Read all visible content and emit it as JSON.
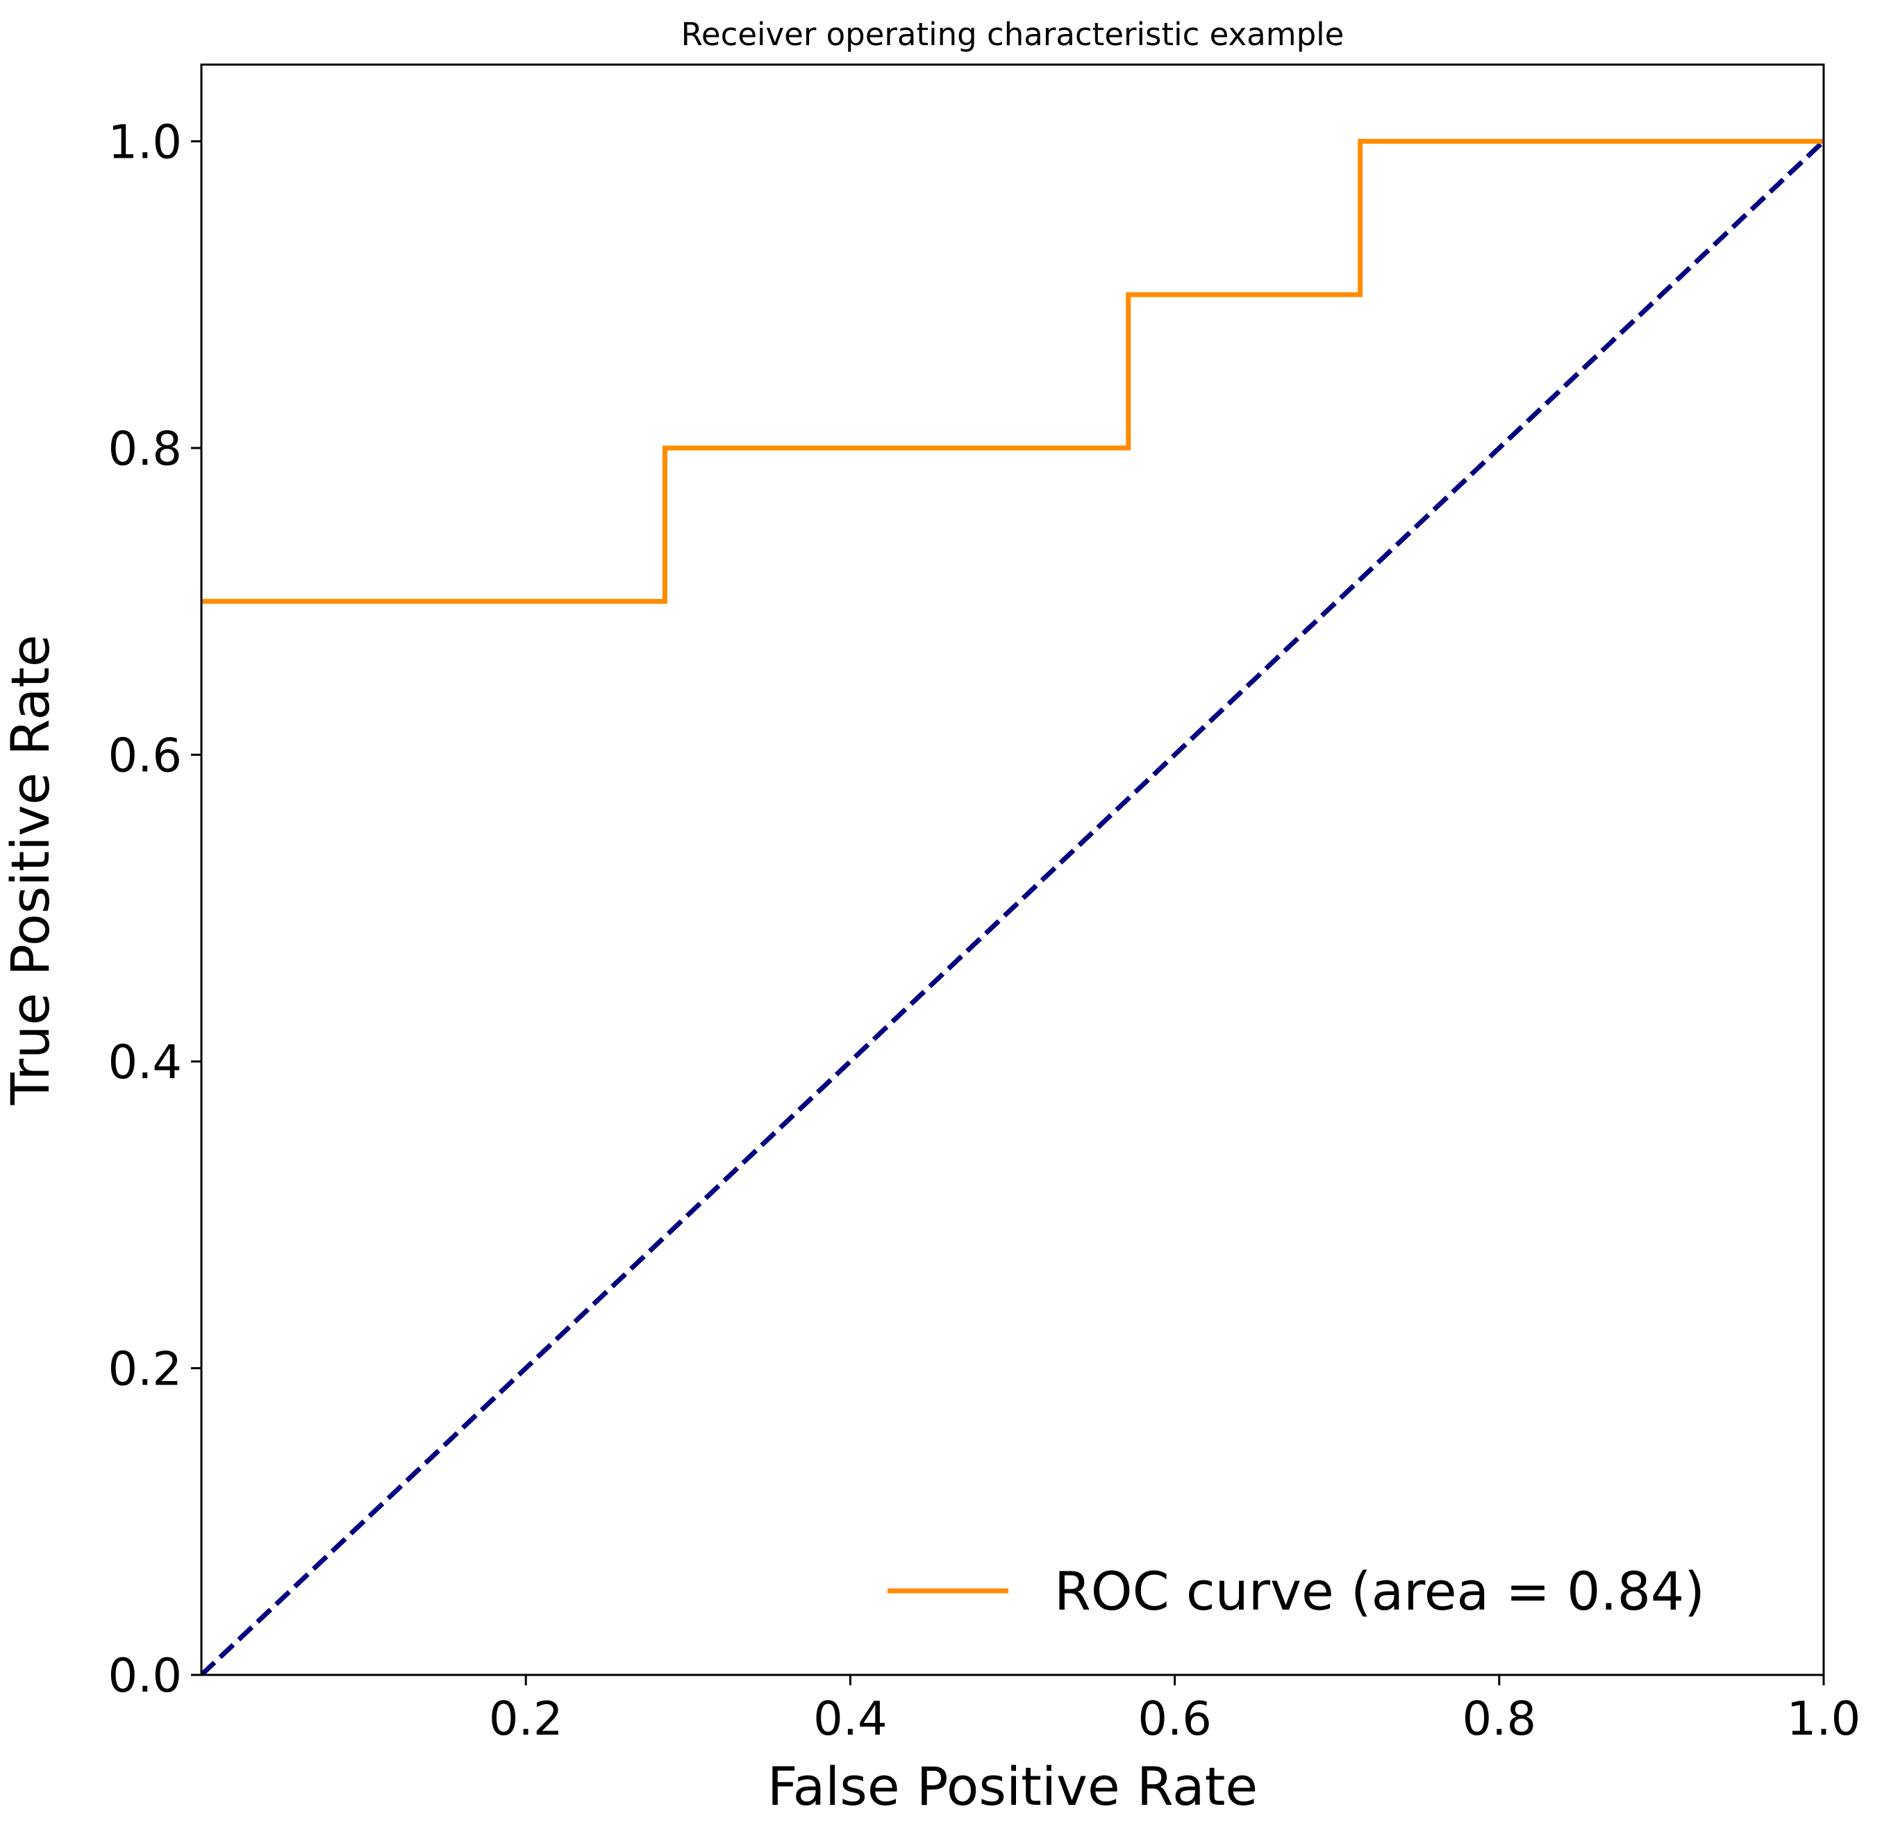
{
  "chart_data": {
    "type": "line",
    "title": "Receiver operating characteristic example",
    "xlabel": "False Positive Rate",
    "ylabel": "True Positive Rate",
    "xlim": [
      0.0,
      1.0
    ],
    "ylim": [
      0.0,
      1.05
    ],
    "x_ticks": [
      0.2,
      0.4,
      0.6,
      0.8,
      1.0
    ],
    "x_tick_labels": [
      "0.2",
      "0.4",
      "0.6",
      "0.8",
      "1.0"
    ],
    "y_ticks": [
      0.0,
      0.2,
      0.4,
      0.6,
      0.8,
      1.0
    ],
    "y_tick_labels": [
      "0.0",
      "0.2",
      "0.4",
      "0.6",
      "0.8",
      "1.0"
    ],
    "grid": false,
    "legend_position": "lower-right",
    "series": [
      {
        "name": "ROC curve (area = 0.84)",
        "color": "#ff8c00",
        "style": "solid",
        "x": [
          0.0,
          0.2857,
          0.2857,
          0.5714,
          0.5714,
          0.7143,
          0.7143,
          1.0
        ],
        "y": [
          0.7,
          0.7,
          0.8,
          0.8,
          0.9,
          0.9,
          1.0,
          1.0
        ]
      },
      {
        "color": "#000080",
        "style": "dashed",
        "x": [
          0.0,
          1.0
        ],
        "y": [
          0.0,
          1.0
        ]
      }
    ]
  }
}
